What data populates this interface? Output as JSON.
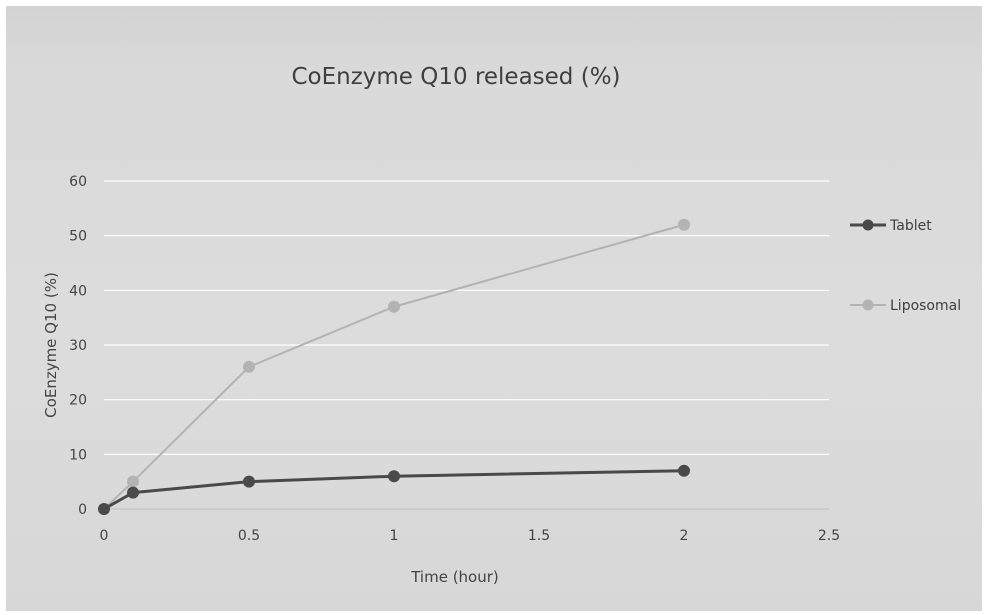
{
  "chart_data": {
    "type": "scatter",
    "title": "CoEnzyme Q10 released (%)",
    "xlabel": "Time (hour)",
    "ylabel": "CoEnzyme Q10 (%)",
    "xlim": [
      0,
      2.5
    ],
    "ylim": [
      0,
      60
    ],
    "xticks": [
      "0",
      "0.5",
      "1",
      "1.5",
      "2",
      "2.5"
    ],
    "yticks": [
      "0",
      "10",
      "20",
      "30",
      "40",
      "50",
      "60"
    ],
    "grid": "horizontal",
    "legend_position": "right",
    "series": [
      {
        "name": "Tablet",
        "color": "#4a4a4a",
        "x": [
          0,
          0.1,
          0.5,
          1,
          2
        ],
        "y": [
          0,
          3,
          5,
          6,
          7
        ]
      },
      {
        "name": "Liposomal",
        "color": "#b3b3b3",
        "x": [
          0,
          0.1,
          0.5,
          1,
          2
        ],
        "y": [
          0,
          5,
          26,
          37,
          52
        ]
      }
    ]
  }
}
